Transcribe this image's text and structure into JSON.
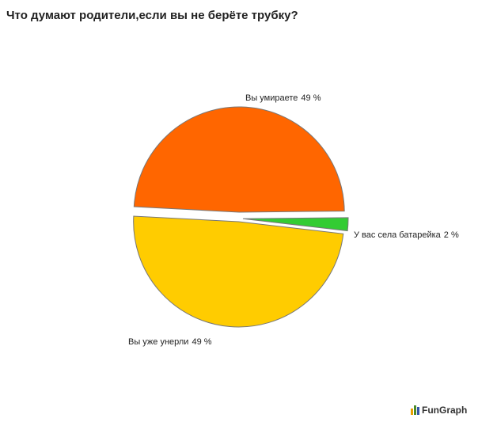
{
  "chart_data": {
    "type": "pie",
    "title": "Что думают родители,если вы не берёте трубку?",
    "categories": [
      "Вы умираете",
      "У вас села батарейка",
      "Вы уже унерли"
    ],
    "values": [
      49,
      2,
      49
    ],
    "value_labels": [
      "49 %",
      "2 %",
      "49 %"
    ],
    "colors": [
      "#ff6600",
      "#33cc33",
      "#ffcc00"
    ],
    "watermark": "FunGraph"
  }
}
